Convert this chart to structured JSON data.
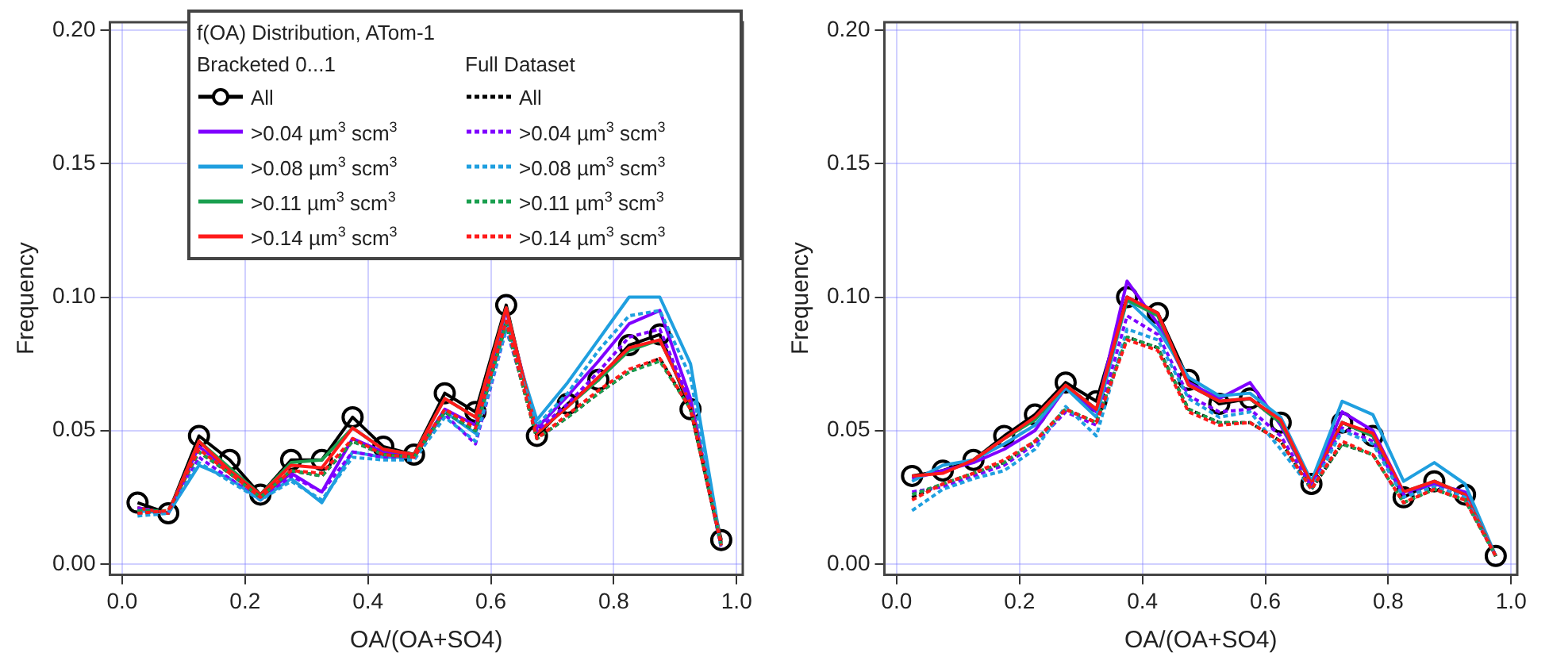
{
  "chart_data": [
    {
      "type": "line",
      "legend_title": "f(OA) Distribution, ATom-1",
      "annotations": [
        "Bracketed 0...1",
        "Full Dataset"
      ],
      "xlabel": "OA/(OA+SO4)",
      "ylabel": "Frequency",
      "x": [
        0.025,
        0.075,
        0.125,
        0.175,
        0.225,
        0.275,
        0.325,
        0.375,
        0.425,
        0.475,
        0.525,
        0.575,
        0.625,
        0.675,
        0.725,
        0.775,
        0.825,
        0.875,
        0.925,
        0.975
      ],
      "xlim": [
        -0.02,
        1.01
      ],
      "ylim": [
        -0.004,
        0.203
      ],
      "xticks": [
        {
          "value": 0,
          "label": "0.0"
        },
        {
          "value": 0.2,
          "label": "0.2"
        },
        {
          "value": 0.4,
          "label": "0.4"
        },
        {
          "value": 0.6,
          "label": "0.6"
        },
        {
          "value": 0.8,
          "label": "0.8"
        },
        {
          "value": 1,
          "label": "1.0"
        }
      ],
      "yticks": [
        {
          "value": 0,
          "label": "0.00"
        },
        {
          "value": 0.05,
          "label": "0.05"
        },
        {
          "value": 0.1,
          "label": "0.10"
        },
        {
          "value": 0.15,
          "label": "0.15"
        },
        {
          "value": 0.2,
          "label": "0.20"
        }
      ],
      "grid": true,
      "legend": "top left",
      "series": [
        {
          "name": "All",
          "color": "#000000",
          "marker": "circle",
          "line_style": "solid",
          "values": [
            0.023,
            0.019,
            0.048,
            0.039,
            0.026,
            0.039,
            0.039,
            0.055,
            0.044,
            0.041,
            0.064,
            0.057,
            0.097,
            0.048,
            0.06,
            0.069,
            0.082,
            0.086,
            0.058,
            0.009
          ]
        },
        {
          "name": ">0.04 µm$^{3}$ scm$^{3}$",
          "color": "#7f00ff",
          "line_style": "solid",
          "values": [
            0.021,
            0.019,
            0.044,
            0.035,
            0.025,
            0.034,
            0.027,
            0.047,
            0.042,
            0.04,
            0.058,
            0.052,
            0.095,
            0.051,
            0.063,
            0.076,
            0.09,
            0.095,
            0.062,
            0.007
          ]
        },
        {
          "name": ">0.08 µm$^{3}$ scm$^{3}$",
          "color": "#1f9fdf",
          "line_style": "solid",
          "values": [
            0.02,
            0.019,
            0.037,
            0.032,
            0.024,
            0.032,
            0.023,
            0.042,
            0.04,
            0.04,
            0.057,
            0.049,
            0.091,
            0.054,
            0.068,
            0.084,
            0.1,
            0.1,
            0.075,
            0.007
          ]
        },
        {
          "name": ">0.11 µm$^{3}$ scm$^{3}$",
          "color": "#1a9f4f",
          "line_style": "solid",
          "values": [
            0.021,
            0.019,
            0.046,
            0.036,
            0.026,
            0.038,
            0.039,
            0.051,
            0.043,
            0.041,
            0.062,
            0.055,
            0.096,
            0.049,
            0.059,
            0.069,
            0.08,
            0.084,
            0.06,
            0.008
          ]
        },
        {
          "name": ">0.14 µm$^{3}$ scm$^{3}$",
          "color": "#ff1a1a",
          "line_style": "solid",
          "values": [
            0.021,
            0.019,
            0.046,
            0.035,
            0.026,
            0.037,
            0.036,
            0.051,
            0.043,
            0.041,
            0.062,
            0.055,
            0.096,
            0.049,
            0.059,
            0.07,
            0.081,
            0.084,
            0.06,
            0.008
          ]
        },
        {
          "name": "All",
          "color": "#000000",
          "line_style": "dashed",
          "values": [
            0.019,
            0.02,
            0.042,
            0.034,
            0.025,
            0.035,
            0.033,
            0.046,
            0.041,
            0.04,
            0.057,
            0.05,
            0.09,
            0.047,
            0.055,
            0.064,
            0.072,
            0.077,
            0.058,
            0.007
          ]
        },
        {
          "name": ">0.04 µm$^{3}$ scm$^{3}$",
          "color": "#7f00ff",
          "line_style": "dashed",
          "values": [
            0.021,
            0.019,
            0.04,
            0.032,
            0.024,
            0.033,
            0.027,
            0.042,
            0.04,
            0.039,
            0.056,
            0.045,
            0.088,
            0.05,
            0.06,
            0.072,
            0.085,
            0.088,
            0.06,
            0.006
          ]
        },
        {
          "name": ">0.08 µm$^{3}$ scm$^{3}$",
          "color": "#1f9fdf",
          "line_style": "dashed",
          "values": [
            0.018,
            0.019,
            0.038,
            0.031,
            0.024,
            0.031,
            0.024,
            0.04,
            0.039,
            0.039,
            0.055,
            0.046,
            0.088,
            0.052,
            0.064,
            0.08,
            0.093,
            0.095,
            0.07,
            0.006
          ]
        },
        {
          "name": ">0.11 µm$^{3}$ scm$^{3}$",
          "color": "#1a9f4f",
          "line_style": "dashed",
          "values": [
            0.02,
            0.02,
            0.042,
            0.034,
            0.025,
            0.035,
            0.033,
            0.046,
            0.041,
            0.04,
            0.057,
            0.05,
            0.09,
            0.047,
            0.055,
            0.064,
            0.072,
            0.076,
            0.058,
            0.007
          ]
        },
        {
          "name": ">0.14 µm$^{3}$ scm$^{3}$",
          "color": "#ff1a1a",
          "line_style": "dashed",
          "values": [
            0.019,
            0.02,
            0.043,
            0.034,
            0.025,
            0.035,
            0.034,
            0.047,
            0.041,
            0.04,
            0.058,
            0.051,
            0.091,
            0.047,
            0.056,
            0.065,
            0.073,
            0.077,
            0.058,
            0.007
          ]
        }
      ]
    },
    {
      "type": "line",
      "xlabel": "OA/(OA+SO4)",
      "ylabel": "Frequency",
      "x": [
        0.025,
        0.075,
        0.125,
        0.175,
        0.225,
        0.275,
        0.325,
        0.375,
        0.425,
        0.475,
        0.525,
        0.575,
        0.625,
        0.675,
        0.725,
        0.775,
        0.825,
        0.875,
        0.925,
        0.975
      ],
      "xlim": [
        -0.02,
        1.01
      ],
      "ylim": [
        -0.004,
        0.203
      ],
      "xticks": [
        {
          "value": 0,
          "label": "0.0"
        },
        {
          "value": 0.2,
          "label": "0.2"
        },
        {
          "value": 0.4,
          "label": "0.4"
        },
        {
          "value": 0.6,
          "label": "0.6"
        },
        {
          "value": 0.8,
          "label": "0.8"
        },
        {
          "value": 1,
          "label": "1.0"
        }
      ],
      "yticks": [
        {
          "value": 0,
          "label": "0.00"
        },
        {
          "value": 0.05,
          "label": "0.05"
        },
        {
          "value": 0.1,
          "label": "0.10"
        },
        {
          "value": 0.15,
          "label": "0.15"
        },
        {
          "value": 0.2,
          "label": "0.20"
        }
      ],
      "grid": true,
      "series": [
        {
          "color": "#000000",
          "marker": "circle",
          "line_style": "solid",
          "values": [
            0.033,
            0.035,
            0.039,
            0.048,
            0.056,
            0.068,
            0.061,
            0.1,
            0.094,
            0.069,
            0.06,
            0.062,
            0.053,
            0.03,
            0.053,
            0.048,
            0.025,
            0.031,
            0.026,
            0.003
          ]
        },
        {
          "color": "#7f00ff",
          "line_style": "solid",
          "values": [
            0.032,
            0.035,
            0.038,
            0.043,
            0.05,
            0.066,
            0.057,
            0.106,
            0.09,
            0.068,
            0.062,
            0.068,
            0.052,
            0.03,
            0.057,
            0.05,
            0.027,
            0.03,
            0.027,
            0.003
          ]
        },
        {
          "color": "#1f9fdf",
          "line_style": "solid",
          "values": [
            0.031,
            0.037,
            0.039,
            0.045,
            0.052,
            0.066,
            0.055,
            0.099,
            0.088,
            0.07,
            0.063,
            0.064,
            0.055,
            0.031,
            0.061,
            0.056,
            0.031,
            0.038,
            0.03,
            0.003
          ]
        },
        {
          "color": "#1a9f4f",
          "line_style": "solid",
          "values": [
            null,
            null,
            0.039,
            0.047,
            0.054,
            0.067,
            0.058,
            0.099,
            0.093,
            0.067,
            0.061,
            0.062,
            0.053,
            0.03,
            0.053,
            0.048,
            0.027,
            0.031,
            0.026,
            0.003
          ]
        },
        {
          "color": "#ff1a1a",
          "line_style": "solid",
          "values": [
            0.033,
            0.034,
            0.039,
            0.047,
            0.055,
            0.067,
            0.058,
            0.1,
            0.094,
            0.067,
            0.061,
            0.062,
            0.054,
            0.03,
            0.053,
            0.049,
            0.027,
            0.031,
            0.026,
            0.003
          ]
        },
        {
          "color": "#000000",
          "line_style": "dashed",
          "values": [
            0.025,
            0.03,
            0.034,
            0.038,
            0.046,
            0.058,
            0.053,
            0.085,
            0.081,
            0.058,
            0.053,
            0.053,
            0.046,
            0.028,
            0.045,
            0.041,
            0.023,
            0.028,
            0.024,
            0.003
          ]
        },
        {
          "color": "#7f00ff",
          "line_style": "dashed",
          "values": [
            0.027,
            0.029,
            0.033,
            0.037,
            0.045,
            0.057,
            0.052,
            0.093,
            0.086,
            0.063,
            0.057,
            0.058,
            0.048,
            0.029,
            0.051,
            0.046,
            0.026,
            0.029,
            0.025,
            0.003
          ]
        },
        {
          "color": "#1f9fdf",
          "line_style": "dashed",
          "values": [
            0.02,
            0.028,
            0.032,
            0.035,
            0.043,
            0.059,
            0.048,
            0.088,
            0.084,
            0.062,
            0.055,
            0.057,
            0.043,
            0.028,
            0.05,
            0.045,
            0.025,
            0.029,
            0.025,
            0.003
          ]
        },
        {
          "color": "#1a9f4f",
          "line_style": "dashed",
          "values": [
            0.026,
            0.03,
            0.034,
            0.038,
            0.046,
            0.058,
            0.053,
            0.085,
            0.081,
            0.058,
            0.053,
            0.053,
            0.046,
            0.028,
            0.045,
            0.041,
            0.023,
            0.028,
            0.024,
            0.003
          ]
        },
        {
          "color": "#ff1a1a",
          "line_style": "dashed",
          "values": [
            0.024,
            0.03,
            0.034,
            0.039,
            0.046,
            0.058,
            0.053,
            0.084,
            0.08,
            0.057,
            0.052,
            0.053,
            0.046,
            0.028,
            0.046,
            0.041,
            0.023,
            0.028,
            0.024,
            0.003
          ]
        }
      ]
    }
  ]
}
